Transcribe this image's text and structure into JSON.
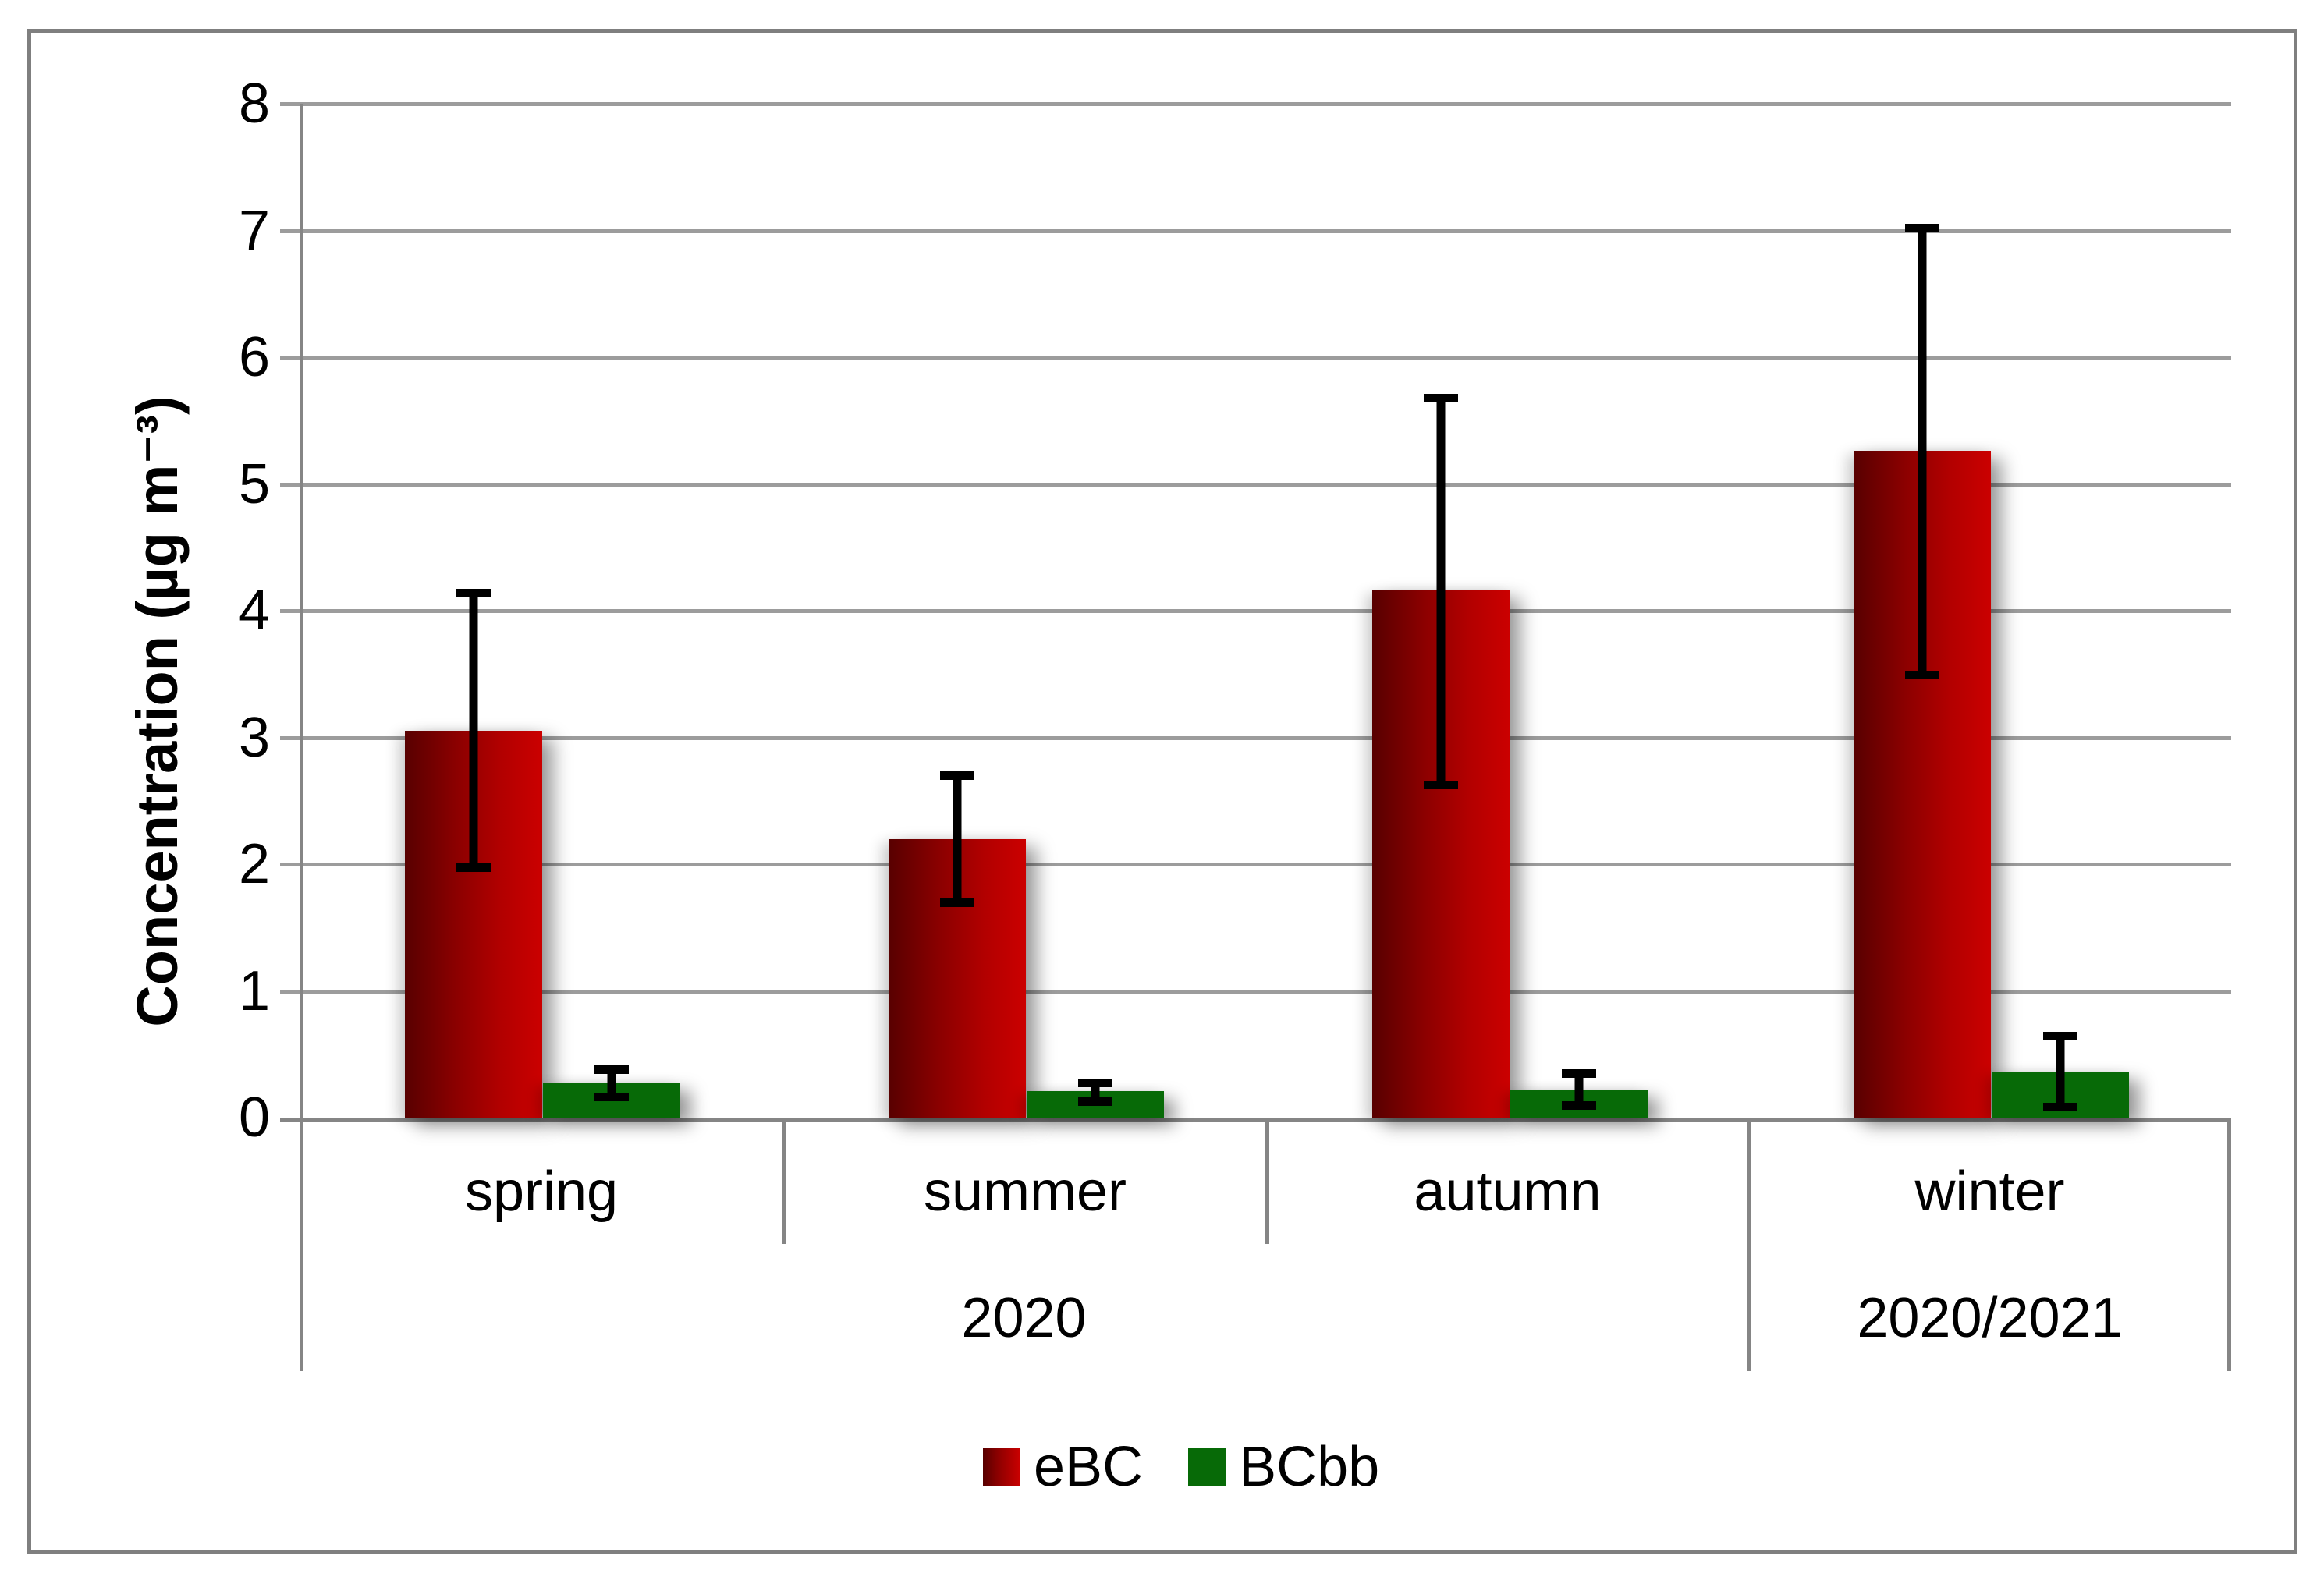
{
  "chart_data": {
    "type": "bar",
    "title": "",
    "ylabel": "Concentration (µg m⁻³)",
    "xlabel": "",
    "ylim": [
      0,
      8
    ],
    "yticks": [
      0,
      1,
      2,
      3,
      4,
      5,
      6,
      7,
      8
    ],
    "grid": "horizontal",
    "legend_position": "bottom",
    "categories": [
      "spring",
      "summer",
      "autumn",
      "winter"
    ],
    "group_labels": [
      {
        "label": "2020",
        "span_categories": [
          "spring",
          "summer",
          "autumn"
        ]
      },
      {
        "label": "2020/2021",
        "span_categories": [
          "winter"
        ]
      }
    ],
    "series": [
      {
        "name": "eBC",
        "color": "#b20000",
        "gradient": [
          "#580000",
          "#cb0000"
        ],
        "values": [
          3.05,
          2.2,
          4.16,
          5.26
        ],
        "error_low": [
          1.94,
          1.66,
          2.59,
          3.46
        ],
        "error_high": [
          4.17,
          2.73,
          5.71,
          7.05
        ]
      },
      {
        "name": "BCbb",
        "color": "#076a07",
        "values": [
          0.28,
          0.21,
          0.22,
          0.36
        ],
        "error_low": [
          0.13,
          0.09,
          0.06,
          0.05
        ],
        "error_high": [
          0.41,
          0.31,
          0.38,
          0.68
        ]
      }
    ]
  },
  "legend": {
    "items": [
      {
        "label": "eBC",
        "color": "#b20000"
      },
      {
        "label": "BCbb",
        "color": "#076a07"
      }
    ]
  },
  "colors": {
    "gridline": "#9c9c9c",
    "axis": "#858585",
    "figure_border": "#7f7f7f",
    "text": "#000000",
    "background": "#ffffff"
  }
}
